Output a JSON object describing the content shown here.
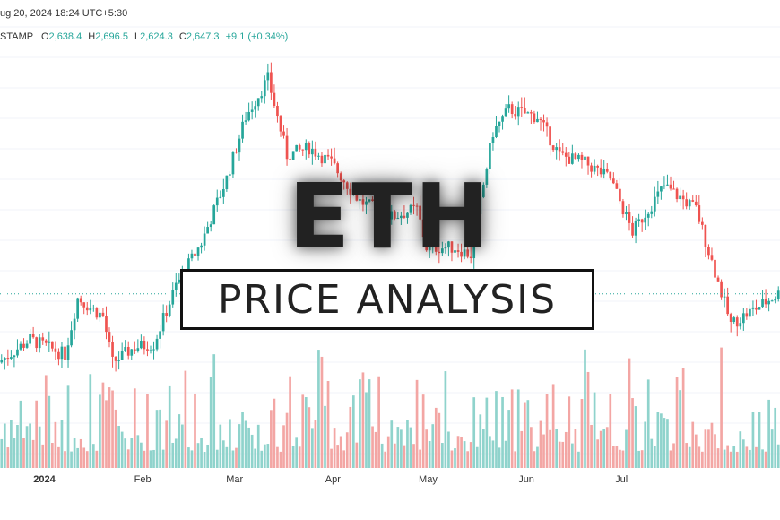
{
  "header": {
    "datetime": "ug 20, 2024 18:24 UTC+5:30",
    "symbol": "STAMP",
    "open_label": "O",
    "open": "2,638.4",
    "high_label": "H",
    "high": "2,696.5",
    "low_label": "L",
    "low": "2,624.3",
    "close_label": "C",
    "close": "2,647.3",
    "change": "+9.1 (+0.34%)"
  },
  "overlay": {
    "title": "ETH",
    "subtitle": "PRICE ANALYSIS"
  },
  "colors": {
    "up": "#26a69a",
    "down": "#ef5350",
    "vol_up": "#8fd3cc",
    "vol_down": "#f3a6a4",
    "grid": "#f0f3fa",
    "last_price_line": "#26a69a"
  },
  "chart_data": {
    "type": "candlestick",
    "x_tick_labels": [
      "2024",
      "Feb",
      "Mar",
      "Apr",
      "May",
      "Jun",
      "Jul"
    ],
    "x_range": [
      "2023-12-18",
      "2024-08-20"
    ],
    "last_close": 2647.3,
    "price_path": [
      [
        "2023-12-18",
        2200
      ],
      [
        "2023-12-28",
        2350
      ],
      [
        "2024-01-08",
        2250
      ],
      [
        "2024-01-12",
        2620
      ],
      [
        "2024-01-20",
        2500
      ],
      [
        "2024-01-23",
        2200
      ],
      [
        "2024-01-30",
        2300
      ],
      [
        "2024-02-05",
        2320
      ],
      [
        "2024-02-12",
        2700
      ],
      [
        "2024-02-20",
        2980
      ],
      [
        "2024-02-28",
        3400
      ],
      [
        "2024-03-05",
        3800
      ],
      [
        "2024-03-12",
        4050
      ],
      [
        "2024-03-18",
        3550
      ],
      [
        "2024-03-25",
        3600
      ],
      [
        "2024-04-01",
        3500
      ],
      [
        "2024-04-10",
        3250
      ],
      [
        "2024-04-20",
        3150
      ],
      [
        "2024-04-28",
        3200
      ],
      [
        "2024-05-01",
        2950
      ],
      [
        "2024-05-10",
        2950
      ],
      [
        "2024-05-15",
        2900
      ],
      [
        "2024-05-22",
        3700
      ],
      [
        "2024-05-27",
        3850
      ],
      [
        "2024-06-05",
        3800
      ],
      [
        "2024-06-12",
        3550
      ],
      [
        "2024-06-20",
        3500
      ],
      [
        "2024-06-28",
        3400
      ],
      [
        "2024-07-05",
        3050
      ],
      [
        "2024-07-15",
        3350
      ],
      [
        "2024-07-25",
        3200
      ],
      [
        "2024-08-05",
        2450
      ],
      [
        "2024-08-20",
        2647.3
      ]
    ]
  }
}
